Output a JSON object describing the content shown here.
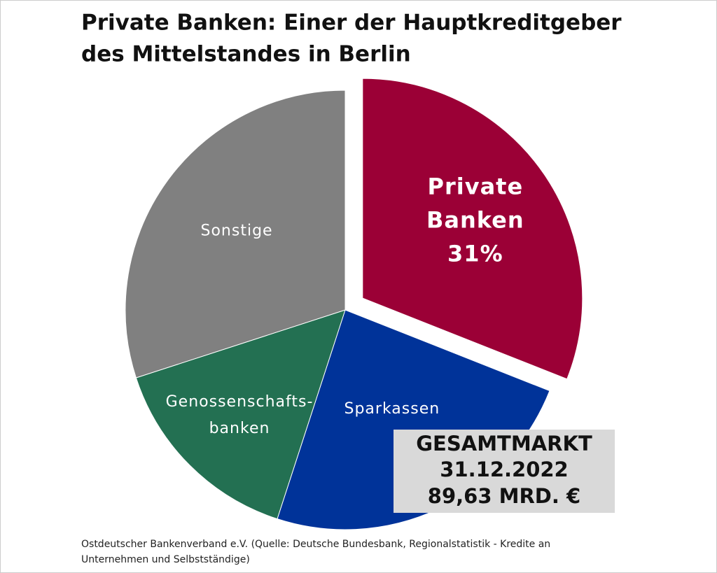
{
  "chart_data": {
    "type": "pie",
    "title": [
      "Private Banken: Einer der Hauptkreditgeber",
      "des Mittelstandes in Berlin"
    ],
    "slices": [
      {
        "label": [
          "Private",
          "Banken"
        ],
        "value": 31,
        "value_label": "31%",
        "color": "#9b0036"
      },
      {
        "label": [
          "Sparkassen"
        ],
        "value": 24,
        "color": "#003399"
      },
      {
        "label": [
          "Genossenschafts-",
          "banken"
        ],
        "value": 15,
        "color": "#237052"
      },
      {
        "label": [
          "Sonstige"
        ],
        "value": 30,
        "color": "#808080"
      }
    ],
    "annotation": [
      "GESAMTMARKT",
      "31.12.2022",
      "89,63  MRD. €"
    ],
    "source": [
      "Ostdeutscher Bankenverband e.V.  (Quelle: Deutsche Bundesbank, Regionalstatistik - Kredite an",
      "Unternehmen  und Selbstständige)"
    ]
  }
}
